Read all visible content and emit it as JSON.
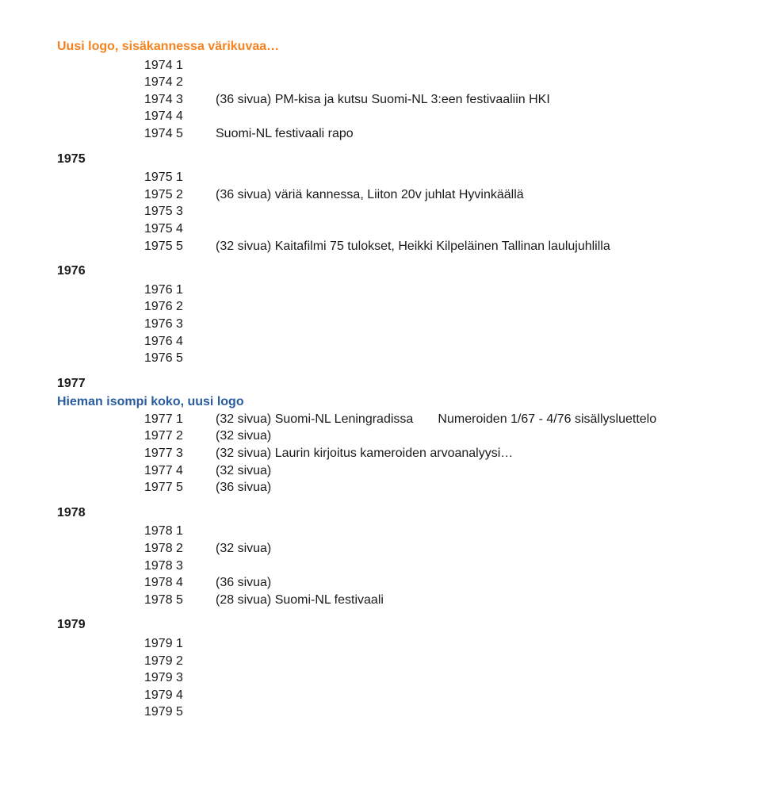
{
  "colors": {
    "orange": "#f58220",
    "blue": "#2a5d9f",
    "text": "#1a1a1a",
    "background": "#ffffff"
  },
  "fontsize": 16,
  "section1974": {
    "heading": "Uusi logo, sisäkannessa värikuvaa…",
    "rows": [
      {
        "label": "1974 1",
        "note": ""
      },
      {
        "label": "1974 2",
        "note": ""
      },
      {
        "label": "1974 3",
        "note": "(36 sivua) PM-kisa ja kutsu Suomi-NL 3:een festivaaliin HKI"
      },
      {
        "label": "1974 4",
        "note": ""
      },
      {
        "label": "1974 5",
        "note": "Suomi-NL festivaali rapo"
      }
    ]
  },
  "section1975": {
    "year": "1975",
    "rows": [
      {
        "label": "1975 1",
        "note": ""
      },
      {
        "label": "1975 2",
        "note": "(36 sivua) väriä kannessa, Liiton 20v juhlat Hyvinkäällä"
      },
      {
        "label": "1975 3",
        "note": ""
      },
      {
        "label": "1975 4",
        "note": ""
      },
      {
        "label": "1975 5",
        "note": "(32 sivua) Kaitafilmi 75 tulokset, Heikki Kilpeläinen Tallinan laulujuhlilla"
      }
    ]
  },
  "section1976": {
    "year": "1976",
    "rows": [
      {
        "label": "1976 1",
        "note": ""
      },
      {
        "label": "1976 2",
        "note": ""
      },
      {
        "label": "1976 3",
        "note": ""
      },
      {
        "label": "1976 4",
        "note": ""
      },
      {
        "label": "1976 5",
        "note": ""
      }
    ]
  },
  "section1977": {
    "year": "1977",
    "heading": "Hieman isompi koko, uusi logo",
    "rows": [
      {
        "label": "1977 1",
        "note": "(32 sivua) Suomi-NL Leningradissa",
        "trail": "       Numeroiden 1/67 - 4/76 sisällysluettelo"
      },
      {
        "label": "1977 2",
        "note": "(32 sivua)"
      },
      {
        "label": "1977 3",
        "note": "(32 sivua) Laurin kirjoitus kameroiden arvoanalyysi…"
      },
      {
        "label": "1977 4",
        "note": "(32 sivua)"
      },
      {
        "label": "1977 5",
        "note": "(36 sivua)"
      }
    ]
  },
  "section1978": {
    "year": "1978",
    "rows": [
      {
        "label": "1978 1",
        "note": ""
      },
      {
        "label": "1978 2",
        "note": "(32 sivua)"
      },
      {
        "label": "1978 3",
        "note": ""
      },
      {
        "label": "1978 4",
        "note": "(36 sivua)"
      },
      {
        "label": "1978 5",
        "note": "(28 sivua) Suomi-NL festivaali"
      }
    ]
  },
  "section1979": {
    "year": "1979",
    "rows": [
      {
        "label": "1979 1",
        "note": ""
      },
      {
        "label": "1979 2",
        "note": ""
      },
      {
        "label": "1979 3",
        "note": ""
      },
      {
        "label": "1979 4",
        "note": ""
      },
      {
        "label": "1979 5",
        "note": ""
      }
    ]
  }
}
